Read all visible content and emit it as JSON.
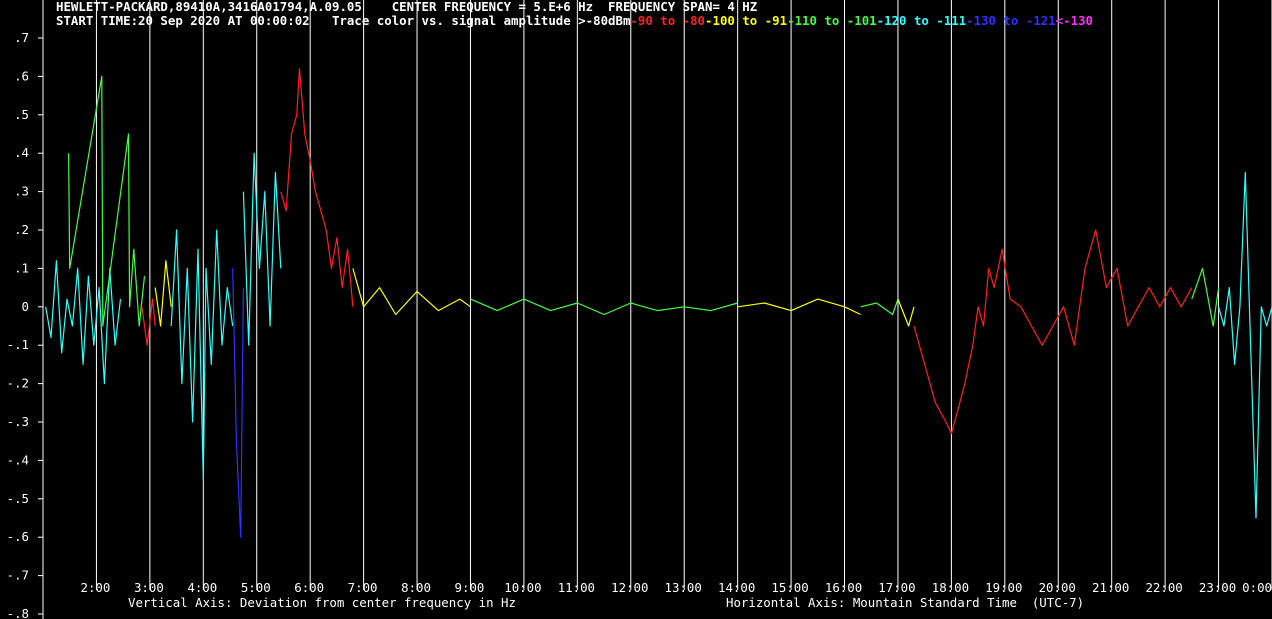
{
  "header": {
    "line1": "HEWLETT-PACKARD,89410A,3416A01794,A.09.05    CENTER FREQUENCY = 5.E+6 Hz  FREQUENCY SPAN= 4 HZ",
    "line2_prefix": "START TIME:20 Sep 2020 AT 00:00:02   Trace color vs. signal amplitude >-80dBm",
    "legend": [
      {
        "text": "-90",
        "color": "#ff2020"
      },
      {
        "text": " to ",
        "color": "#ff2020"
      },
      {
        "text": "-80",
        "color": "#ff2020"
      },
      {
        "text": "-100",
        "color": "#ffff00"
      },
      {
        "text": " to ",
        "color": "#ffff00"
      },
      {
        "text": "-91",
        "color": "#ffff00"
      },
      {
        "text": "-110",
        "color": "#40ff40"
      },
      {
        "text": " to ",
        "color": "#40ff40"
      },
      {
        "text": "-101",
        "color": "#40ff40"
      },
      {
        "text": "-120",
        "color": "#30ffff"
      },
      {
        "text": " to ",
        "color": "#30ffff"
      },
      {
        "text": "-111",
        "color": "#30ffff"
      },
      {
        "text": "-130",
        "color": "#3030ff"
      },
      {
        "text": " to ",
        "color": "#3030ff"
      },
      {
        "text": "-121",
        "color": "#3030ff"
      },
      {
        "text": "<-130",
        "color": "#ff30ff"
      }
    ]
  },
  "footer": {
    "vertical_axis": "Vertical Axis: Deviation from center frequency in Hz",
    "horizontal_axis": "Horizontal Axis: Mountain Standard Time  (UTC-7)"
  },
  "chart_data": {
    "type": "line",
    "title": "HEWLETT-PACKARD,89410A,3416A01794,A.09.05    CENTER FREQUENCY = 5.E+6 Hz  FREQUENCY SPAN= 4 HZ",
    "xlabel": "Horizontal Axis: Mountain Standard Time  (UTC-7)",
    "ylabel": "Vertical Axis: Deviation from center frequency in Hz",
    "xlim": [
      1.0,
      24.0
    ],
    "ylim": [
      -0.8,
      0.7
    ],
    "grid": "vertical lines at each hour",
    "y_ticks": [
      0.7,
      0.6,
      0.5,
      0.4,
      0.3,
      0.2,
      0.1,
      0,
      -0.1,
      -0.2,
      -0.3,
      -0.4,
      -0.5,
      -0.6,
      -0.7,
      -0.8
    ],
    "y_tick_labels": [
      ".7",
      ".6",
      ".5",
      ".4",
      ".3",
      ".2",
      ".1",
      "0",
      "-.1",
      "-.2",
      "-.3",
      "-.4",
      "-.5",
      "-.6",
      "-.7",
      "-.8"
    ],
    "x_ticks": [
      2,
      3,
      4,
      5,
      6,
      7,
      8,
      9,
      10,
      11,
      12,
      13,
      14,
      15,
      16,
      17,
      18,
      19,
      20,
      21,
      22,
      23,
      24
    ],
    "x_tick_labels": [
      "2:00",
      "3:00",
      "4:00",
      "5:00",
      "6:00",
      "7:00",
      "8:00",
      "9:00",
      "10:00",
      "11:00",
      "12:00",
      "13:00",
      "14:00",
      "15:00",
      "16:00",
      "17:00",
      "18:00",
      "19:00",
      "20:00",
      "21:00",
      "22:00",
      "23:00",
      "0:00"
    ],
    "color_levels": {
      "red": "#ff2020",
      "yellow": "#ffff00",
      "green": "#40ff40",
      "cyan": "#30ffff",
      "blue": "#3030ff"
    },
    "segments": [
      {
        "color": "cyan",
        "points": [
          [
            1.05,
            0.0
          ],
          [
            1.15,
            -0.08
          ],
          [
            1.25,
            0.12
          ],
          [
            1.35,
            -0.12
          ],
          [
            1.45,
            0.02
          ],
          [
            1.55,
            -0.05
          ],
          [
            1.65,
            0.1
          ],
          [
            1.75,
            -0.15
          ],
          [
            1.85,
            0.08
          ],
          [
            1.95,
            -0.1
          ],
          [
            2.05,
            0.05
          ],
          [
            2.15,
            -0.2
          ],
          [
            2.25,
            0.1
          ],
          [
            2.35,
            -0.1
          ],
          [
            2.45,
            0.02
          ]
        ]
      },
      {
        "color": "green",
        "points": [
          [
            1.48,
            0.4
          ],
          [
            1.5,
            0.1
          ],
          [
            2.1,
            0.6
          ],
          [
            2.12,
            -0.05
          ],
          [
            2.6,
            0.45
          ],
          [
            2.62,
            0.0
          ],
          [
            2.7,
            0.15
          ],
          [
            2.8,
            -0.05
          ],
          [
            2.9,
            0.08
          ]
        ]
      },
      {
        "color": "red",
        "points": [
          [
            2.85,
            0.0
          ],
          [
            2.95,
            -0.1
          ],
          [
            3.05,
            0.02
          ],
          [
            3.1,
            -0.05
          ]
        ]
      },
      {
        "color": "yellow",
        "points": [
          [
            3.1,
            0.05
          ],
          [
            3.2,
            -0.05
          ],
          [
            3.3,
            0.12
          ],
          [
            3.4,
            0.0
          ]
        ]
      },
      {
        "color": "cyan",
        "points": [
          [
            3.4,
            -0.05
          ],
          [
            3.5,
            0.2
          ],
          [
            3.6,
            -0.2
          ],
          [
            3.7,
            0.1
          ],
          [
            3.8,
            -0.3
          ],
          [
            3.9,
            0.15
          ],
          [
            4.0,
            -0.45
          ],
          [
            4.05,
            0.1
          ],
          [
            4.15,
            -0.15
          ],
          [
            4.25,
            0.2
          ],
          [
            4.35,
            -0.1
          ],
          [
            4.45,
            0.05
          ],
          [
            4.55,
            -0.05
          ]
        ]
      },
      {
        "color": "blue",
        "points": [
          [
            4.55,
            0.1
          ],
          [
            4.62,
            -0.35
          ],
          [
            4.7,
            -0.6
          ],
          [
            4.75,
            0.05
          ]
        ]
      },
      {
        "color": "cyan",
        "points": [
          [
            4.75,
            0.3
          ],
          [
            4.85,
            -0.1
          ],
          [
            4.95,
            0.4
          ],
          [
            5.05,
            0.1
          ],
          [
            5.15,
            0.3
          ],
          [
            5.25,
            -0.05
          ],
          [
            5.35,
            0.35
          ],
          [
            5.45,
            0.1
          ]
        ]
      },
      {
        "color": "red",
        "points": [
          [
            5.45,
            0.3
          ],
          [
            5.55,
            0.25
          ],
          [
            5.65,
            0.45
          ],
          [
            5.75,
            0.5
          ],
          [
            5.8,
            0.62
          ],
          [
            5.9,
            0.45
          ],
          [
            6.0,
            0.38
          ],
          [
            6.1,
            0.3
          ],
          [
            6.2,
            0.25
          ],
          [
            6.3,
            0.2
          ],
          [
            6.4,
            0.1
          ],
          [
            6.5,
            0.18
          ],
          [
            6.6,
            0.05
          ],
          [
            6.7,
            0.15
          ],
          [
            6.8,
            0.0
          ]
        ]
      },
      {
        "color": "yellow",
        "points": [
          [
            6.8,
            0.1
          ],
          [
            7.0,
            0.0
          ],
          [
            7.3,
            0.05
          ],
          [
            7.6,
            -0.02
          ],
          [
            8.0,
            0.04
          ],
          [
            8.4,
            -0.01
          ],
          [
            8.8,
            0.02
          ],
          [
            9.0,
            0.0
          ]
        ]
      },
      {
        "color": "green",
        "points": [
          [
            9.0,
            0.02
          ],
          [
            9.5,
            -0.01
          ],
          [
            10.0,
            0.02
          ],
          [
            10.5,
            -0.01
          ],
          [
            11.0,
            0.01
          ],
          [
            11.5,
            -0.02
          ],
          [
            12.0,
            0.01
          ],
          [
            12.5,
            -0.01
          ],
          [
            13.0,
            0.0
          ],
          [
            13.5,
            -0.01
          ],
          [
            14.0,
            0.01
          ]
        ]
      },
      {
        "color": "yellow",
        "points": [
          [
            14.0,
            0.0
          ],
          [
            14.5,
            0.01
          ],
          [
            15.0,
            -0.01
          ],
          [
            15.5,
            0.02
          ],
          [
            16.0,
            0.0
          ],
          [
            16.3,
            -0.02
          ]
        ]
      },
      {
        "color": "green",
        "points": [
          [
            16.3,
            0.0
          ],
          [
            16.6,
            0.01
          ],
          [
            16.9,
            -0.02
          ],
          [
            17.0,
            0.02
          ]
        ]
      },
      {
        "color": "yellow",
        "points": [
          [
            17.0,
            0.02
          ],
          [
            17.2,
            -0.05
          ],
          [
            17.3,
            0.0
          ]
        ]
      },
      {
        "color": "red",
        "points": [
          [
            17.3,
            -0.05
          ],
          [
            17.5,
            -0.15
          ],
          [
            17.7,
            -0.25
          ],
          [
            17.9,
            -0.3
          ],
          [
            18.0,
            -0.33
          ],
          [
            18.1,
            -0.28
          ],
          [
            18.25,
            -0.2
          ],
          [
            18.4,
            -0.1
          ],
          [
            18.5,
            0.0
          ],
          [
            18.6,
            -0.05
          ],
          [
            18.7,
            0.1
          ],
          [
            18.8,
            0.05
          ],
          [
            18.95,
            0.15
          ],
          [
            19.1,
            0.02
          ],
          [
            19.3,
            0.0
          ],
          [
            19.5,
            -0.05
          ],
          [
            19.7,
            -0.1
          ],
          [
            19.9,
            -0.05
          ],
          [
            20.1,
            0.0
          ],
          [
            20.3,
            -0.1
          ],
          [
            20.5,
            0.1
          ],
          [
            20.7,
            0.2
          ],
          [
            20.9,
            0.05
          ],
          [
            21.1,
            0.1
          ],
          [
            21.3,
            -0.05
          ],
          [
            21.5,
            0.0
          ],
          [
            21.7,
            0.05
          ],
          [
            21.9,
            0.0
          ],
          [
            22.1,
            0.05
          ],
          [
            22.3,
            0.0
          ],
          [
            22.5,
            0.05
          ]
        ]
      },
      {
        "color": "green",
        "points": [
          [
            22.5,
            0.02
          ],
          [
            22.7,
            0.1
          ],
          [
            22.9,
            -0.05
          ],
          [
            23.0,
            0.05
          ]
        ]
      },
      {
        "color": "cyan",
        "points": [
          [
            23.0,
            0.0
          ],
          [
            23.1,
            -0.05
          ],
          [
            23.2,
            0.05
          ],
          [
            23.3,
            -0.15
          ],
          [
            23.4,
            0.0
          ],
          [
            23.5,
            0.35
          ],
          [
            23.6,
            -0.1
          ],
          [
            23.7,
            -0.55
          ],
          [
            23.8,
            0.0
          ],
          [
            23.9,
            -0.05
          ],
          [
            24.0,
            0.0
          ]
        ]
      }
    ]
  }
}
